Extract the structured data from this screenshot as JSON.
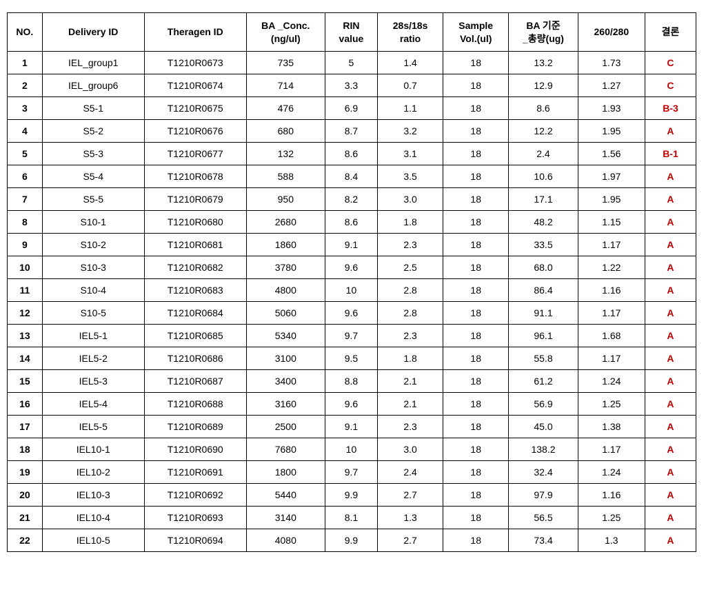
{
  "table": {
    "columns": [
      {
        "key": "no",
        "label": "NO.",
        "class": "col-no",
        "header_bold": true,
        "bold": true
      },
      {
        "key": "delivery",
        "label": "Delivery ID",
        "class": "col-del",
        "header_bold": true,
        "bold": false
      },
      {
        "key": "theragen",
        "label": "Theragen ID",
        "class": "col-ther",
        "header_bold": true,
        "bold": false
      },
      {
        "key": "conc",
        "label": "BA _Conc.\n(ng/ul)",
        "class": "col-conc",
        "header_bold": true,
        "bold": false
      },
      {
        "key": "rin",
        "label": "RIN\nvalue",
        "class": "col-rin",
        "header_bold": true,
        "bold": false
      },
      {
        "key": "ratio",
        "label": "28s/18s\nratio",
        "class": "col-ratio",
        "header_bold": true,
        "bold": false
      },
      {
        "key": "vol",
        "label": "Sample\nVol.(ul)",
        "class": "col-vol",
        "header_bold": true,
        "bold": false
      },
      {
        "key": "total",
        "label": "BA 기준\n_총량(ug)",
        "class": "col-total",
        "header_bold": true,
        "bold": false
      },
      {
        "key": "r260",
        "label": "260/280",
        "class": "col-260",
        "header_bold": true,
        "bold": false
      },
      {
        "key": "result",
        "label": "결론",
        "class": "col-res",
        "header_bold": true,
        "bold": false,
        "is_result": true
      }
    ],
    "result_colors": {
      "A": "#c00000",
      "B-1": "#c00000",
      "B-3": "#c00000",
      "C": "#c00000"
    },
    "rows": [
      {
        "no": "1",
        "delivery": "IEL_group1",
        "theragen": "T1210R0673",
        "conc": "735",
        "rin": "5",
        "ratio": "1.4",
        "vol": "18",
        "total": "13.2",
        "r260": "1.73",
        "result": "C"
      },
      {
        "no": "2",
        "delivery": "IEL_group6",
        "theragen": "T1210R0674",
        "conc": "714",
        "rin": "3.3",
        "ratio": "0.7",
        "vol": "18",
        "total": "12.9",
        "r260": "1.27",
        "result": "C"
      },
      {
        "no": "3",
        "delivery": "S5-1",
        "theragen": "T1210R0675",
        "conc": "476",
        "rin": "6.9",
        "ratio": "1.1",
        "vol": "18",
        "total": "8.6",
        "r260": "1.93",
        "result": "B-3"
      },
      {
        "no": "4",
        "delivery": "S5-2",
        "theragen": "T1210R0676",
        "conc": "680",
        "rin": "8.7",
        "ratio": "3.2",
        "vol": "18",
        "total": "12.2",
        "r260": "1.95",
        "result": "A"
      },
      {
        "no": "5",
        "delivery": "S5-3",
        "theragen": "T1210R0677",
        "conc": "132",
        "rin": "8.6",
        "ratio": "3.1",
        "vol": "18",
        "total": "2.4",
        "r260": "1.56",
        "result": "B-1"
      },
      {
        "no": "6",
        "delivery": "S5-4",
        "theragen": "T1210R0678",
        "conc": "588",
        "rin": "8.4",
        "ratio": "3.5",
        "vol": "18",
        "total": "10.6",
        "r260": "1.97",
        "result": "A"
      },
      {
        "no": "7",
        "delivery": "S5-5",
        "theragen": "T1210R0679",
        "conc": "950",
        "rin": "8.2",
        "ratio": "3.0",
        "vol": "18",
        "total": "17.1",
        "r260": "1.95",
        "result": "A"
      },
      {
        "no": "8",
        "delivery": "S10-1",
        "theragen": "T1210R0680",
        "conc": "2680",
        "rin": "8.6",
        "ratio": "1.8",
        "vol": "18",
        "total": "48.2",
        "r260": "1.15",
        "result": "A"
      },
      {
        "no": "9",
        "delivery": "S10-2",
        "theragen": "T1210R0681",
        "conc": "1860",
        "rin": "9.1",
        "ratio": "2.3",
        "vol": "18",
        "total": "33.5",
        "r260": "1.17",
        "result": "A"
      },
      {
        "no": "10",
        "delivery": "S10-3",
        "theragen": "T1210R0682",
        "conc": "3780",
        "rin": "9.6",
        "ratio": "2.5",
        "vol": "18",
        "total": "68.0",
        "r260": "1.22",
        "result": "A"
      },
      {
        "no": "11",
        "delivery": "S10-4",
        "theragen": "T1210R0683",
        "conc": "4800",
        "rin": "10",
        "ratio": "2.8",
        "vol": "18",
        "total": "86.4",
        "r260": "1.16",
        "result": "A"
      },
      {
        "no": "12",
        "delivery": "S10-5",
        "theragen": "T1210R0684",
        "conc": "5060",
        "rin": "9.6",
        "ratio": "2.8",
        "vol": "18",
        "total": "91.1",
        "r260": "1.17",
        "result": "A"
      },
      {
        "no": "13",
        "delivery": "IEL5-1",
        "theragen": "T1210R0685",
        "conc": "5340",
        "rin": "9.7",
        "ratio": "2.3",
        "vol": "18",
        "total": "96.1",
        "r260": "1.68",
        "result": "A"
      },
      {
        "no": "14",
        "delivery": "IEL5-2",
        "theragen": "T1210R0686",
        "conc": "3100",
        "rin": "9.5",
        "ratio": "1.8",
        "vol": "18",
        "total": "55.8",
        "r260": "1.17",
        "result": "A"
      },
      {
        "no": "15",
        "delivery": "IEL5-3",
        "theragen": "T1210R0687",
        "conc": "3400",
        "rin": "8.8",
        "ratio": "2.1",
        "vol": "18",
        "total": "61.2",
        "r260": "1.24",
        "result": "A"
      },
      {
        "no": "16",
        "delivery": "IEL5-4",
        "theragen": "T1210R0688",
        "conc": "3160",
        "rin": "9.6",
        "ratio": "2.1",
        "vol": "18",
        "total": "56.9",
        "r260": "1.25",
        "result": "A"
      },
      {
        "no": "17",
        "delivery": "IEL5-5",
        "theragen": "T1210R0689",
        "conc": "2500",
        "rin": "9.1",
        "ratio": "2.3",
        "vol": "18",
        "total": "45.0",
        "r260": "1.38",
        "result": "A"
      },
      {
        "no": "18",
        "delivery": "IEL10-1",
        "theragen": "T1210R0690",
        "conc": "7680",
        "rin": "10",
        "ratio": "3.0",
        "vol": "18",
        "total": "138.2",
        "r260": "1.17",
        "result": "A"
      },
      {
        "no": "19",
        "delivery": "IEL10-2",
        "theragen": "T1210R0691",
        "conc": "1800",
        "rin": "9.7",
        "ratio": "2.4",
        "vol": "18",
        "total": "32.4",
        "r260": "1.24",
        "result": "A"
      },
      {
        "no": "20",
        "delivery": "IEL10-3",
        "theragen": "T1210R0692",
        "conc": "5440",
        "rin": "9.9",
        "ratio": "2.7",
        "vol": "18",
        "total": "97.9",
        "r260": "1.16",
        "result": "A"
      },
      {
        "no": "21",
        "delivery": "IEL10-4",
        "theragen": "T1210R0693",
        "conc": "3140",
        "rin": "8.1",
        "ratio": "1.3",
        "vol": "18",
        "total": "56.5",
        "r260": "1.25",
        "result": "A"
      },
      {
        "no": "22",
        "delivery": "IEL10-5",
        "theragen": "T1210R0694",
        "conc": "4080",
        "rin": "9.9",
        "ratio": "2.7",
        "vol": "18",
        "total": "73.4",
        "r260": "1.3",
        "result": "A"
      }
    ]
  }
}
